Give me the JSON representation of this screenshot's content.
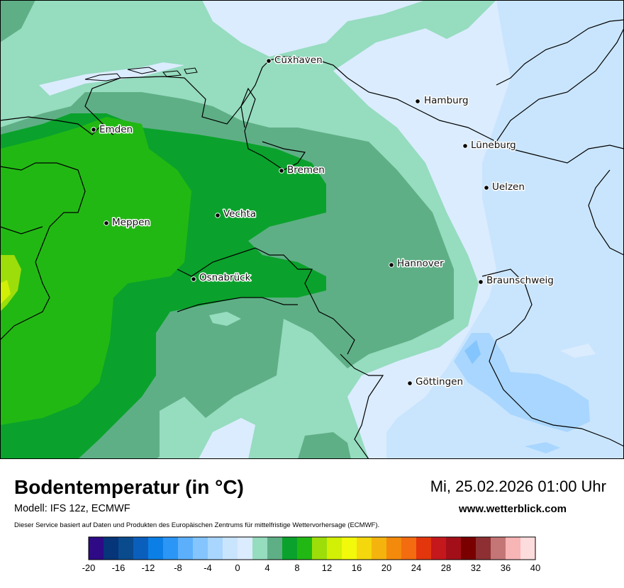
{
  "map": {
    "cities": [
      {
        "name": "Cuxhaven",
        "id": "cuxhaven"
      },
      {
        "name": "Hamburg",
        "id": "hamburg"
      },
      {
        "name": "Emden",
        "id": "emden"
      },
      {
        "name": "Lüneburg",
        "id": "lueneburg"
      },
      {
        "name": "Bremen",
        "id": "bremen"
      },
      {
        "name": "Uelzen",
        "id": "uelzen"
      },
      {
        "name": "Vechta",
        "id": "vechta"
      },
      {
        "name": "Meppen",
        "id": "meppen"
      },
      {
        "name": "Hannover",
        "id": "hannover"
      },
      {
        "name": "Osnabrück",
        "id": "osnabrueck"
      },
      {
        "name": "Braunschweig",
        "id": "braunschweig"
      },
      {
        "name": "Göttingen",
        "id": "goettingen"
      }
    ]
  },
  "header": {
    "title": "Bodentemperatur (in °C)",
    "datetime": "Mi, 25.02.2026 01:00 Uhr",
    "model": "Modell: IFS 12z, ECMWF",
    "website": "www.wetterblick.com",
    "service_note": "Dieser Service basiert auf Daten und Produkten des Europäischen Zentrums für mittelfristige Wettervorhersage (ECMWF)."
  },
  "legend": {
    "ticks": [
      "-20",
      "-16",
      "-12",
      "-8",
      "-4",
      "0",
      "4",
      "8",
      "12",
      "16",
      "20",
      "24",
      "28",
      "32",
      "36",
      "40"
    ],
    "colors": [
      "#2e0a86",
      "#06357a",
      "#0a4b8e",
      "#0b5fbc",
      "#0b7fe6",
      "#2b96f6",
      "#5cb0fb",
      "#85c5fd",
      "#a9d6fe",
      "#c9e5fd",
      "#dbecfe",
      "#96dcbf",
      "#5faf86",
      "#0aa22c",
      "#22b814",
      "#9ddd0a",
      "#d2ef06",
      "#f2f90a",
      "#f4d80d",
      "#f4b40d",
      "#f38a0c",
      "#f36c0f",
      "#e3360d",
      "#c5181c",
      "#a30f19",
      "#7a0000",
      "#8e3033",
      "#c47677",
      "#f7b5b6",
      "#fcdcdc"
    ]
  }
}
